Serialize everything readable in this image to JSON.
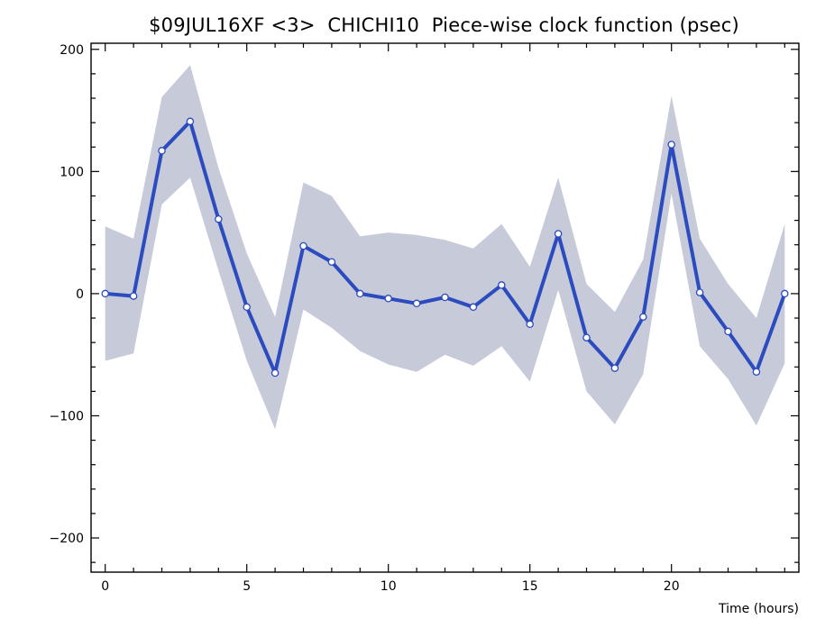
{
  "chart_data": {
    "type": "line",
    "title": "$09JUL16XF <3>  CHICHI10  Piece-wise clock function (psec)",
    "xlabel": "Time (hours)",
    "ylabel": "",
    "xlim": [
      -0.5,
      24.5
    ],
    "ylim": [
      -228,
      205
    ],
    "xticks": [
      0,
      5,
      10,
      15,
      20
    ],
    "yticks": [
      200,
      100,
      0,
      -100,
      -200
    ],
    "grid": false,
    "x": [
      0,
      1,
      2,
      3,
      4,
      5,
      6,
      7,
      8,
      9,
      10,
      11,
      12,
      13,
      14,
      15,
      16,
      17,
      18,
      19,
      20,
      21,
      22,
      23,
      24
    ],
    "series": [
      {
        "values": [
          0,
          -2,
          117,
          141,
          61,
          -11,
          -65,
          39,
          26,
          0,
          -4,
          -8,
          -3,
          -11,
          7,
          -25,
          49,
          -36,
          -61,
          -19,
          122,
          1,
          -31,
          -64,
          0
        ],
        "band_upper": [
          55,
          45,
          161,
          187,
          103,
          33,
          -19,
          91,
          80,
          47,
          50,
          48,
          44,
          37,
          57,
          22,
          95,
          8,
          -15,
          28,
          162,
          45,
          8,
          -20,
          57
        ],
        "band_lower": [
          -55,
          -49,
          73,
          95,
          19,
          -55,
          -111,
          -13,
          -28,
          -47,
          -58,
          -64,
          -50,
          -59,
          -43,
          -72,
          3,
          -80,
          -107,
          -66,
          82,
          -43,
          -70,
          -108,
          -57
        ]
      }
    ],
    "colors": {
      "line": "#2b4bbf",
      "band": "#c7cad9",
      "marker_fill": "#ffffff",
      "axis": "#000000"
    }
  }
}
